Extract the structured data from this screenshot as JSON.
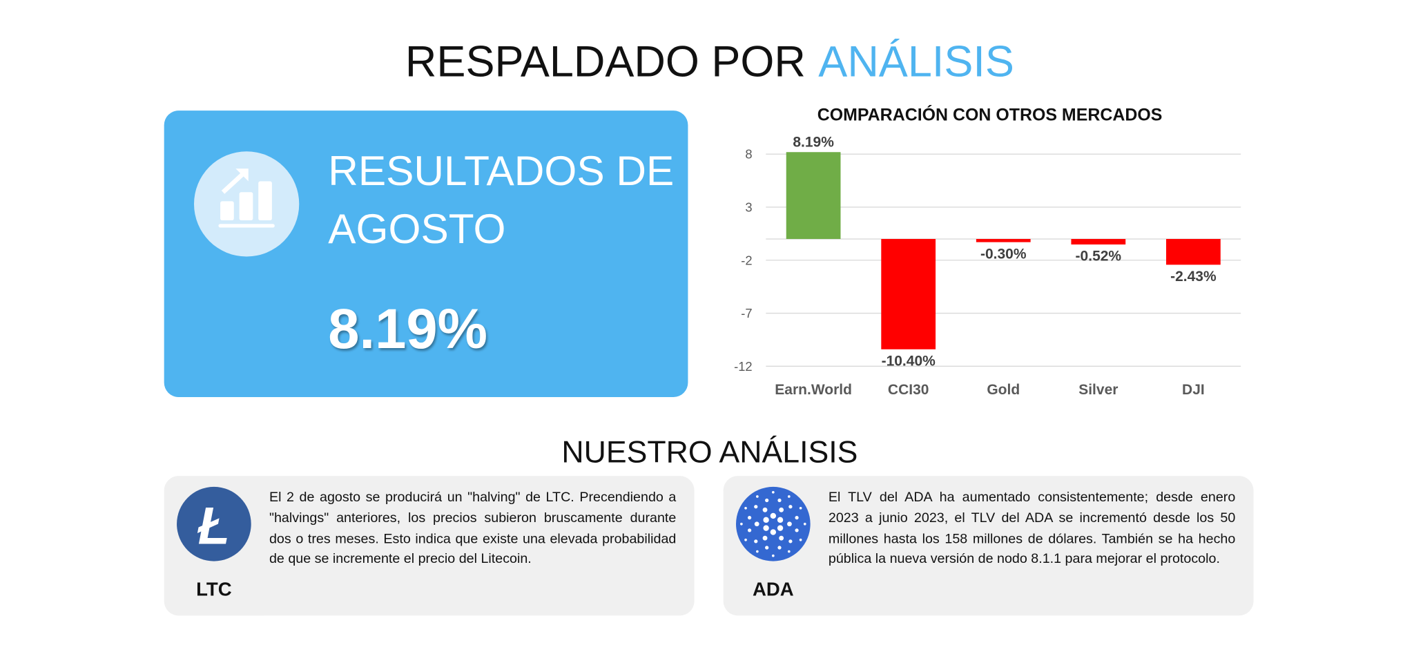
{
  "title": {
    "main": "RESPALDADO POR",
    "highlight": "ANÁLISIS"
  },
  "card": {
    "heading_line1": "RESULTADOS DE",
    "heading_line2": "AGOSTO",
    "value": "8.19%"
  },
  "chart_data": {
    "type": "bar",
    "title": "COMPARACIÓN CON OTROS MERCADOS",
    "categories": [
      "Earn.World",
      "CCI30",
      "Gold",
      "Silver",
      "DJI"
    ],
    "values": [
      8.19,
      -10.4,
      -0.3,
      -0.52,
      -2.43
    ],
    "value_labels": [
      "8.19%",
      "-10.40%",
      "-0.30%",
      "-0.52%",
      "-2.43%"
    ],
    "colors": [
      "#70ad47",
      "#ff0000",
      "#ff0000",
      "#ff0000",
      "#ff0000"
    ],
    "ylim": [
      -12,
      8
    ],
    "yticks": [
      8,
      3,
      -2,
      -7,
      -12
    ],
    "grid": true
  },
  "section_title": "NUESTRO ANÁLISIS",
  "analysis": [
    {
      "label": "LTC",
      "text": "El 2 de agosto se producirá un \"halving\" de LTC. Precendiendo a \"halvings\" anteriores, los precios subieron bruscamente durante dos o tres meses. Esto indica que existe una elevada probabilidad de que se incremente el precio del Litecoin."
    },
    {
      "label": "ADA",
      "text": "El TLV del ADA ha aumentado consistentemente; desde enero 2023 a junio 2023, el TLV del ADA se incrementó desde los 50 millones hasta los 158 millones de dólares. También se ha hecho pública la nueva versión de nodo 8.1.1 para mejorar el protocolo."
    }
  ]
}
